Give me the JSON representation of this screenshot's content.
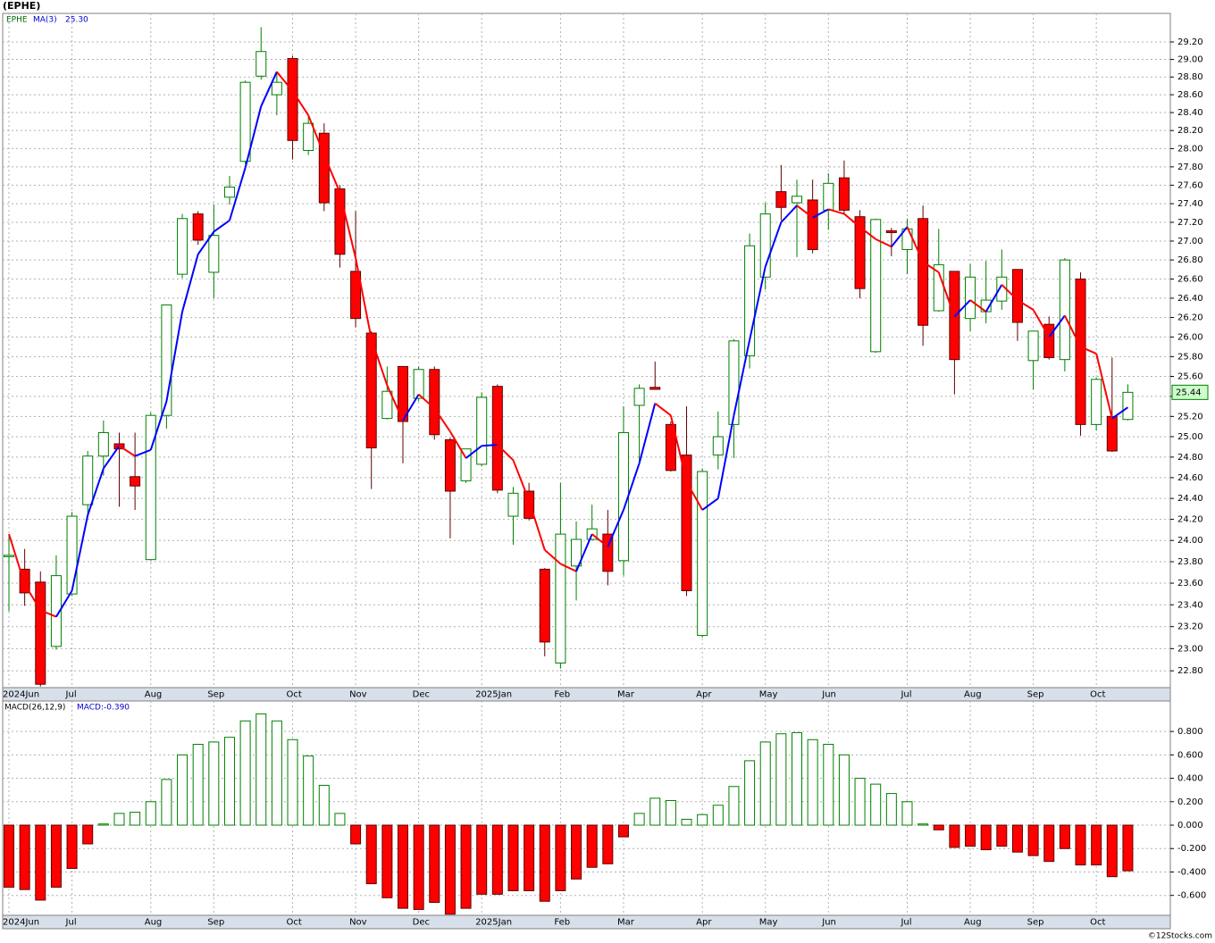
{
  "chart_data": [
    {
      "type": "candlestick",
      "title": "(EPHE)",
      "symbol": "EPHE",
      "copyright": "©12Stocks.com",
      "categories": [
        "2024Jun",
        null,
        null,
        null,
        "Jul",
        null,
        null,
        null,
        null,
        "Aug",
        null,
        null,
        null,
        "Sep",
        null,
        null,
        null,
        null,
        "Oct",
        null,
        null,
        null,
        "Nov",
        null,
        null,
        null,
        "Dec",
        null,
        null,
        null,
        "2025Jan",
        null,
        null,
        null,
        null,
        "Feb",
        null,
        null,
        null,
        "Mar",
        null,
        null,
        null,
        null,
        "Apr",
        null,
        null,
        null,
        "May",
        null,
        null,
        null,
        "Jun",
        null,
        null,
        null,
        null,
        "Jul",
        null,
        null,
        null,
        "Aug",
        null,
        null,
        null,
        "Sep",
        null,
        null,
        null,
        "Oct",
        null,
        null
      ],
      "open": [
        23.85,
        23.73,
        23.61,
        23.02,
        23.5,
        24.34,
        24.81,
        24.93,
        24.61,
        23.82,
        25.21,
        26.65,
        27.29,
        26.67,
        27.47,
        27.86,
        28.81,
        28.6,
        29.01,
        27.98,
        28.17,
        27.56,
        26.68,
        26.04,
        25.18,
        25.7,
        25.38,
        25.67,
        24.97,
        24.57,
        24.73,
        25.5,
        24.23,
        24.47,
        23.73,
        22.87,
        23.76,
        24.01,
        24.06,
        23.81,
        25.31,
        25.49,
        25.12,
        24.82,
        23.12,
        24.82,
        25.12,
        25.81,
        26.62,
        27.53,
        27.41,
        27.44,
        27.33,
        27.68,
        27.26,
        25.85,
        27.11,
        26.91,
        27.24,
        26.27,
        26.68,
        26.19,
        26.26,
        26.37,
        26.7,
        25.76,
        26.13,
        25.77,
        26.6,
        25.12,
        25.2,
        25.17
      ],
      "high": [
        24.04,
        23.92,
        23.71,
        23.86,
        24.27,
        24.86,
        25.16,
        25.04,
        25.04,
        25.24,
        26.33,
        27.29,
        27.32,
        27.39,
        27.7,
        28.76,
        29.37,
        28.84,
        29.04,
        28.37,
        28.28,
        27.6,
        27.32,
        26.06,
        25.7,
        25.7,
        25.7,
        25.7,
        24.99,
        24.88,
        25.44,
        25.52,
        24.51,
        24.55,
        23.74,
        24.55,
        24.18,
        24.34,
        24.29,
        25.3,
        25.52,
        25.75,
        25.15,
        25.3,
        24.69,
        25.25,
        25.98,
        27.08,
        27.41,
        27.82,
        27.66,
        27.66,
        27.73,
        27.87,
        27.33,
        27.24,
        27.14,
        27.24,
        27.38,
        27.13,
        26.68,
        26.76,
        26.79,
        26.91,
        26.7,
        26.06,
        26.21,
        26.82,
        26.67,
        25.59,
        25.79,
        25.52
      ],
      "low": [
        23.34,
        23.39,
        22.66,
        22.99,
        23.48,
        24.23,
        24.62,
        24.32,
        24.29,
        23.81,
        25.08,
        26.61,
        26.96,
        26.4,
        27.39,
        27.83,
        28.77,
        28.37,
        27.88,
        27.93,
        27.32,
        26.72,
        26.1,
        24.49,
        25.17,
        24.74,
        25.35,
        24.97,
        24.02,
        24.55,
        24.71,
        24.45,
        23.96,
        24.19,
        22.93,
        22.82,
        23.44,
        24.0,
        23.58,
        23.67,
        24.75,
        25.47,
        24.66,
        23.48,
        23.1,
        24.68,
        24.79,
        25.68,
        26.49,
        27.22,
        26.83,
        26.87,
        27.12,
        27.29,
        26.4,
        25.84,
        26.84,
        26.65,
        25.91,
        26.26,
        25.42,
        26.06,
        26.14,
        26.28,
        25.96,
        25.47,
        25.77,
        25.65,
        25.01,
        25.06,
        24.85,
        25.16
      ],
      "close": [
        23.86,
        23.51,
        22.68,
        23.67,
        24.23,
        24.81,
        25.04,
        24.88,
        24.52,
        25.21,
        26.33,
        27.24,
        27.01,
        27.06,
        27.58,
        28.74,
        29.09,
        28.74,
        28.09,
        28.28,
        27.41,
        26.86,
        26.19,
        24.89,
        25.45,
        25.15,
        25.67,
        25.02,
        24.47,
        24.88,
        25.39,
        24.48,
        24.45,
        24.21,
        23.06,
        24.06,
        24.01,
        24.11,
        23.71,
        25.04,
        25.48,
        25.47,
        24.67,
        23.53,
        24.66,
        25.0,
        25.96,
        26.95,
        27.29,
        27.36,
        27.48,
        26.91,
        27.62,
        27.33,
        26.5,
        27.23,
        27.09,
        27.13,
        26.12,
        26.75,
        25.77,
        26.62,
        26.38,
        26.62,
        26.15,
        26.06,
        25.79,
        26.8,
        25.12,
        25.57,
        24.86,
        25.44
      ],
      "up_color": "#008000",
      "down_color": "#ff0000",
      "last_price": 25.44,
      "ma": {
        "name": "MA(3)",
        "last_label": "25.30",
        "up_color": "#0000ff",
        "down_color": "#ff0000",
        "values": [
          24.06,
          23.59,
          23.35,
          23.29,
          23.53,
          24.24,
          24.69,
          24.91,
          24.81,
          24.87,
          25.35,
          26.26,
          26.86,
          27.1,
          27.22,
          27.79,
          28.47,
          28.86,
          28.64,
          28.37,
          27.93,
          27.52,
          26.82,
          25.98,
          25.51,
          25.16,
          25.42,
          25.28,
          25.05,
          24.79,
          24.91,
          24.92,
          24.77,
          24.38,
          23.91,
          23.78,
          23.71,
          24.06,
          23.94,
          24.29,
          24.74,
          25.33,
          25.21,
          24.56,
          24.29,
          24.4,
          25.21,
          25.97,
          26.73,
          27.2,
          27.38,
          27.25,
          27.34,
          27.29,
          27.15,
          27.02,
          26.94,
          27.15,
          26.78,
          26.67,
          26.21,
          26.38,
          26.26,
          26.54,
          26.38,
          26.28,
          26.0,
          26.22,
          25.9,
          25.83,
          25.18,
          25.29
        ]
      },
      "log_scale": true,
      "grid": true,
      "ylim": [
        22.65,
        29.53
      ],
      "yticks": [
        {
          "value": 22.8,
          "label": "22.80"
        },
        {
          "value": 23.0,
          "label": "23.00"
        },
        {
          "value": 23.2,
          "label": "23.20"
        },
        {
          "value": 23.4,
          "label": "23.40"
        },
        {
          "value": 23.6,
          "label": "23.60"
        },
        {
          "value": 23.8,
          "label": "23.80"
        },
        {
          "value": 24.0,
          "label": "24.00"
        },
        {
          "value": 24.2,
          "label": "24.20"
        },
        {
          "value": 24.4,
          "label": "24.40"
        },
        {
          "value": 24.6,
          "label": "24.60"
        },
        {
          "value": 24.8,
          "label": "24.80"
        },
        {
          "value": 25.0,
          "label": "25.00"
        },
        {
          "value": 25.2,
          "label": "25.20"
        },
        {
          "value": 25.4,
          "label": "25.40"
        },
        {
          "value": 25.6,
          "label": "25.60"
        },
        {
          "value": 25.8,
          "label": "25.80"
        },
        {
          "value": 26.0,
          "label": "26.00"
        },
        {
          "value": 26.2,
          "label": "26.20"
        },
        {
          "value": 26.4,
          "label": "26.40"
        },
        {
          "value": 26.6,
          "label": "26.60"
        },
        {
          "value": 26.8,
          "label": "26.80"
        },
        {
          "value": 27.0,
          "label": "27.00"
        },
        {
          "value": 27.2,
          "label": "27.20"
        },
        {
          "value": 27.4,
          "label": "27.40"
        },
        {
          "value": 27.6,
          "label": "27.60"
        },
        {
          "value": 27.8,
          "label": "27.80"
        },
        {
          "value": 28.0,
          "label": "28.00"
        },
        {
          "value": 28.2,
          "label": "28.20"
        },
        {
          "value": 28.4,
          "label": "28.40"
        },
        {
          "value": 28.6,
          "label": "28.60"
        },
        {
          "value": 28.8,
          "label": "28.80"
        },
        {
          "value": 29.0,
          "label": "29.00"
        },
        {
          "value": 29.2,
          "label": "29.20"
        }
      ]
    },
    {
      "type": "bar",
      "title": "MACD(26,12,9)",
      "value_text": "MACD:-0.390",
      "categories": [
        "2024Jun",
        null,
        null,
        null,
        "Jul",
        null,
        null,
        null,
        null,
        "Aug",
        null,
        null,
        null,
        "Sep",
        null,
        null,
        null,
        null,
        "Oct",
        null,
        null,
        null,
        "Nov",
        null,
        null,
        null,
        "Dec",
        null,
        null,
        null,
        "2025Jan",
        null,
        null,
        null,
        null,
        "Feb",
        null,
        null,
        null,
        "Mar",
        null,
        null,
        null,
        null,
        "Apr",
        null,
        null,
        null,
        "May",
        null,
        null,
        null,
        "Jun",
        null,
        null,
        null,
        null,
        "Jul",
        null,
        null,
        null,
        "Aug",
        null,
        null,
        null,
        "Sep",
        null,
        null,
        null,
        "Oct",
        null,
        null
      ],
      "values": [
        -0.53,
        -0.55,
        -0.64,
        -0.53,
        -0.37,
        -0.16,
        0.01,
        0.1,
        0.11,
        0.2,
        0.39,
        0.6,
        0.69,
        0.71,
        0.75,
        0.89,
        0.95,
        0.89,
        0.73,
        0.59,
        0.34,
        0.1,
        -0.16,
        -0.5,
        -0.62,
        -0.71,
        -0.72,
        -0.66,
        -0.76,
        -0.71,
        -0.59,
        -0.59,
        -0.56,
        -0.56,
        -0.65,
        -0.56,
        -0.46,
        -0.36,
        -0.33,
        -0.1,
        0.1,
        0.23,
        0.21,
        0.05,
        0.09,
        0.17,
        0.33,
        0.55,
        0.71,
        0.78,
        0.79,
        0.73,
        0.69,
        0.6,
        0.4,
        0.35,
        0.27,
        0.2,
        0.01,
        -0.04,
        -0.19,
        -0.18,
        -0.21,
        -0.18,
        -0.23,
        -0.26,
        -0.31,
        -0.2,
        -0.34,
        -0.34,
        -0.44,
        -0.39
      ],
      "up_color": "#008000",
      "down_color": "#ff0000",
      "grid": true,
      "ylim": [
        -0.77,
        1.06
      ],
      "yticks": [
        {
          "value": -0.6,
          "label": "-0.600"
        },
        {
          "value": -0.4,
          "label": "-0.400"
        },
        {
          "value": -0.2,
          "label": "-0.200"
        },
        {
          "value": 0,
          "label": "0.000"
        },
        {
          "value": 0.2,
          "label": "0.200"
        },
        {
          "value": 0.4,
          "label": "0.400"
        },
        {
          "value": 0.6,
          "label": "0.600"
        },
        {
          "value": 0.8,
          "label": "0.800"
        }
      ]
    }
  ]
}
